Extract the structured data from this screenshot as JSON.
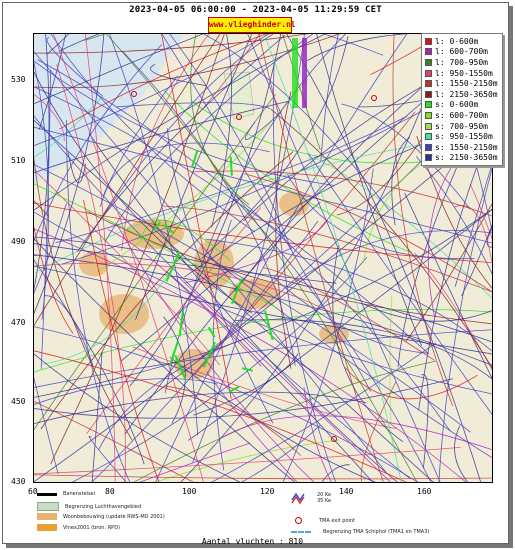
{
  "header": {
    "title": "2023-04-05 06:00:00 - 2023-04-05 11:29:59 CET",
    "brand": "www.vlieghinder.nl"
  },
  "axes": {
    "y_ticks": [
      "530",
      "510",
      "490",
      "470",
      "450",
      "430"
    ],
    "x_ticks": [
      "60",
      "80",
      "100",
      "120",
      "140",
      "160"
    ]
  },
  "legend": [
    {
      "label": "l: 0-600m",
      "color": "#e01010"
    },
    {
      "label": "l: 600-700m",
      "color": "#b020c0"
    },
    {
      "label": "l: 700-950m",
      "color": "#408020"
    },
    {
      "label": "l: 950-1550m",
      "color": "#e04070"
    },
    {
      "label": "l: 1550-2150m",
      "color": "#c03030"
    },
    {
      "label": "l: 2150-3650m",
      "color": "#802020"
    },
    {
      "label": "s: 0-600m",
      "color": "#20e020"
    },
    {
      "label": "s: 600-700m",
      "color": "#80e020"
    },
    {
      "label": "s: 700-950m",
      "color": "#a0e040"
    },
    {
      "label": "s: 950-1550m",
      "color": "#40e0a0"
    },
    {
      "label": "s: 1550-2150m",
      "color": "#4040c0"
    },
    {
      "label": "s: 2150-3650m",
      "color": "#303090"
    }
  ],
  "map_legend": [
    {
      "label": "Banenstelsel"
    },
    {
      "label": "Begrenzing Luchthavengebied"
    },
    {
      "label": "Woonbebouwing (update RWS-MD 2001)"
    },
    {
      "label": "Vinex2001 (bron: RPD)"
    },
    {
      "label": "20 Ke"
    },
    {
      "label": "35 Ke"
    },
    {
      "label": "TMA exit point"
    },
    {
      "label": "Begrenzing TMA Schiphol  (TMA1 en TMA3)"
    }
  ],
  "footer": {
    "count": "Aantal vluchten : 810"
  },
  "colors": {
    "sea": "#d8e6ef",
    "land": "#f1ecd8",
    "urban": "#e7b26e",
    "brand_bg": "#ffef00",
    "brand_text": "#cc0000"
  }
}
